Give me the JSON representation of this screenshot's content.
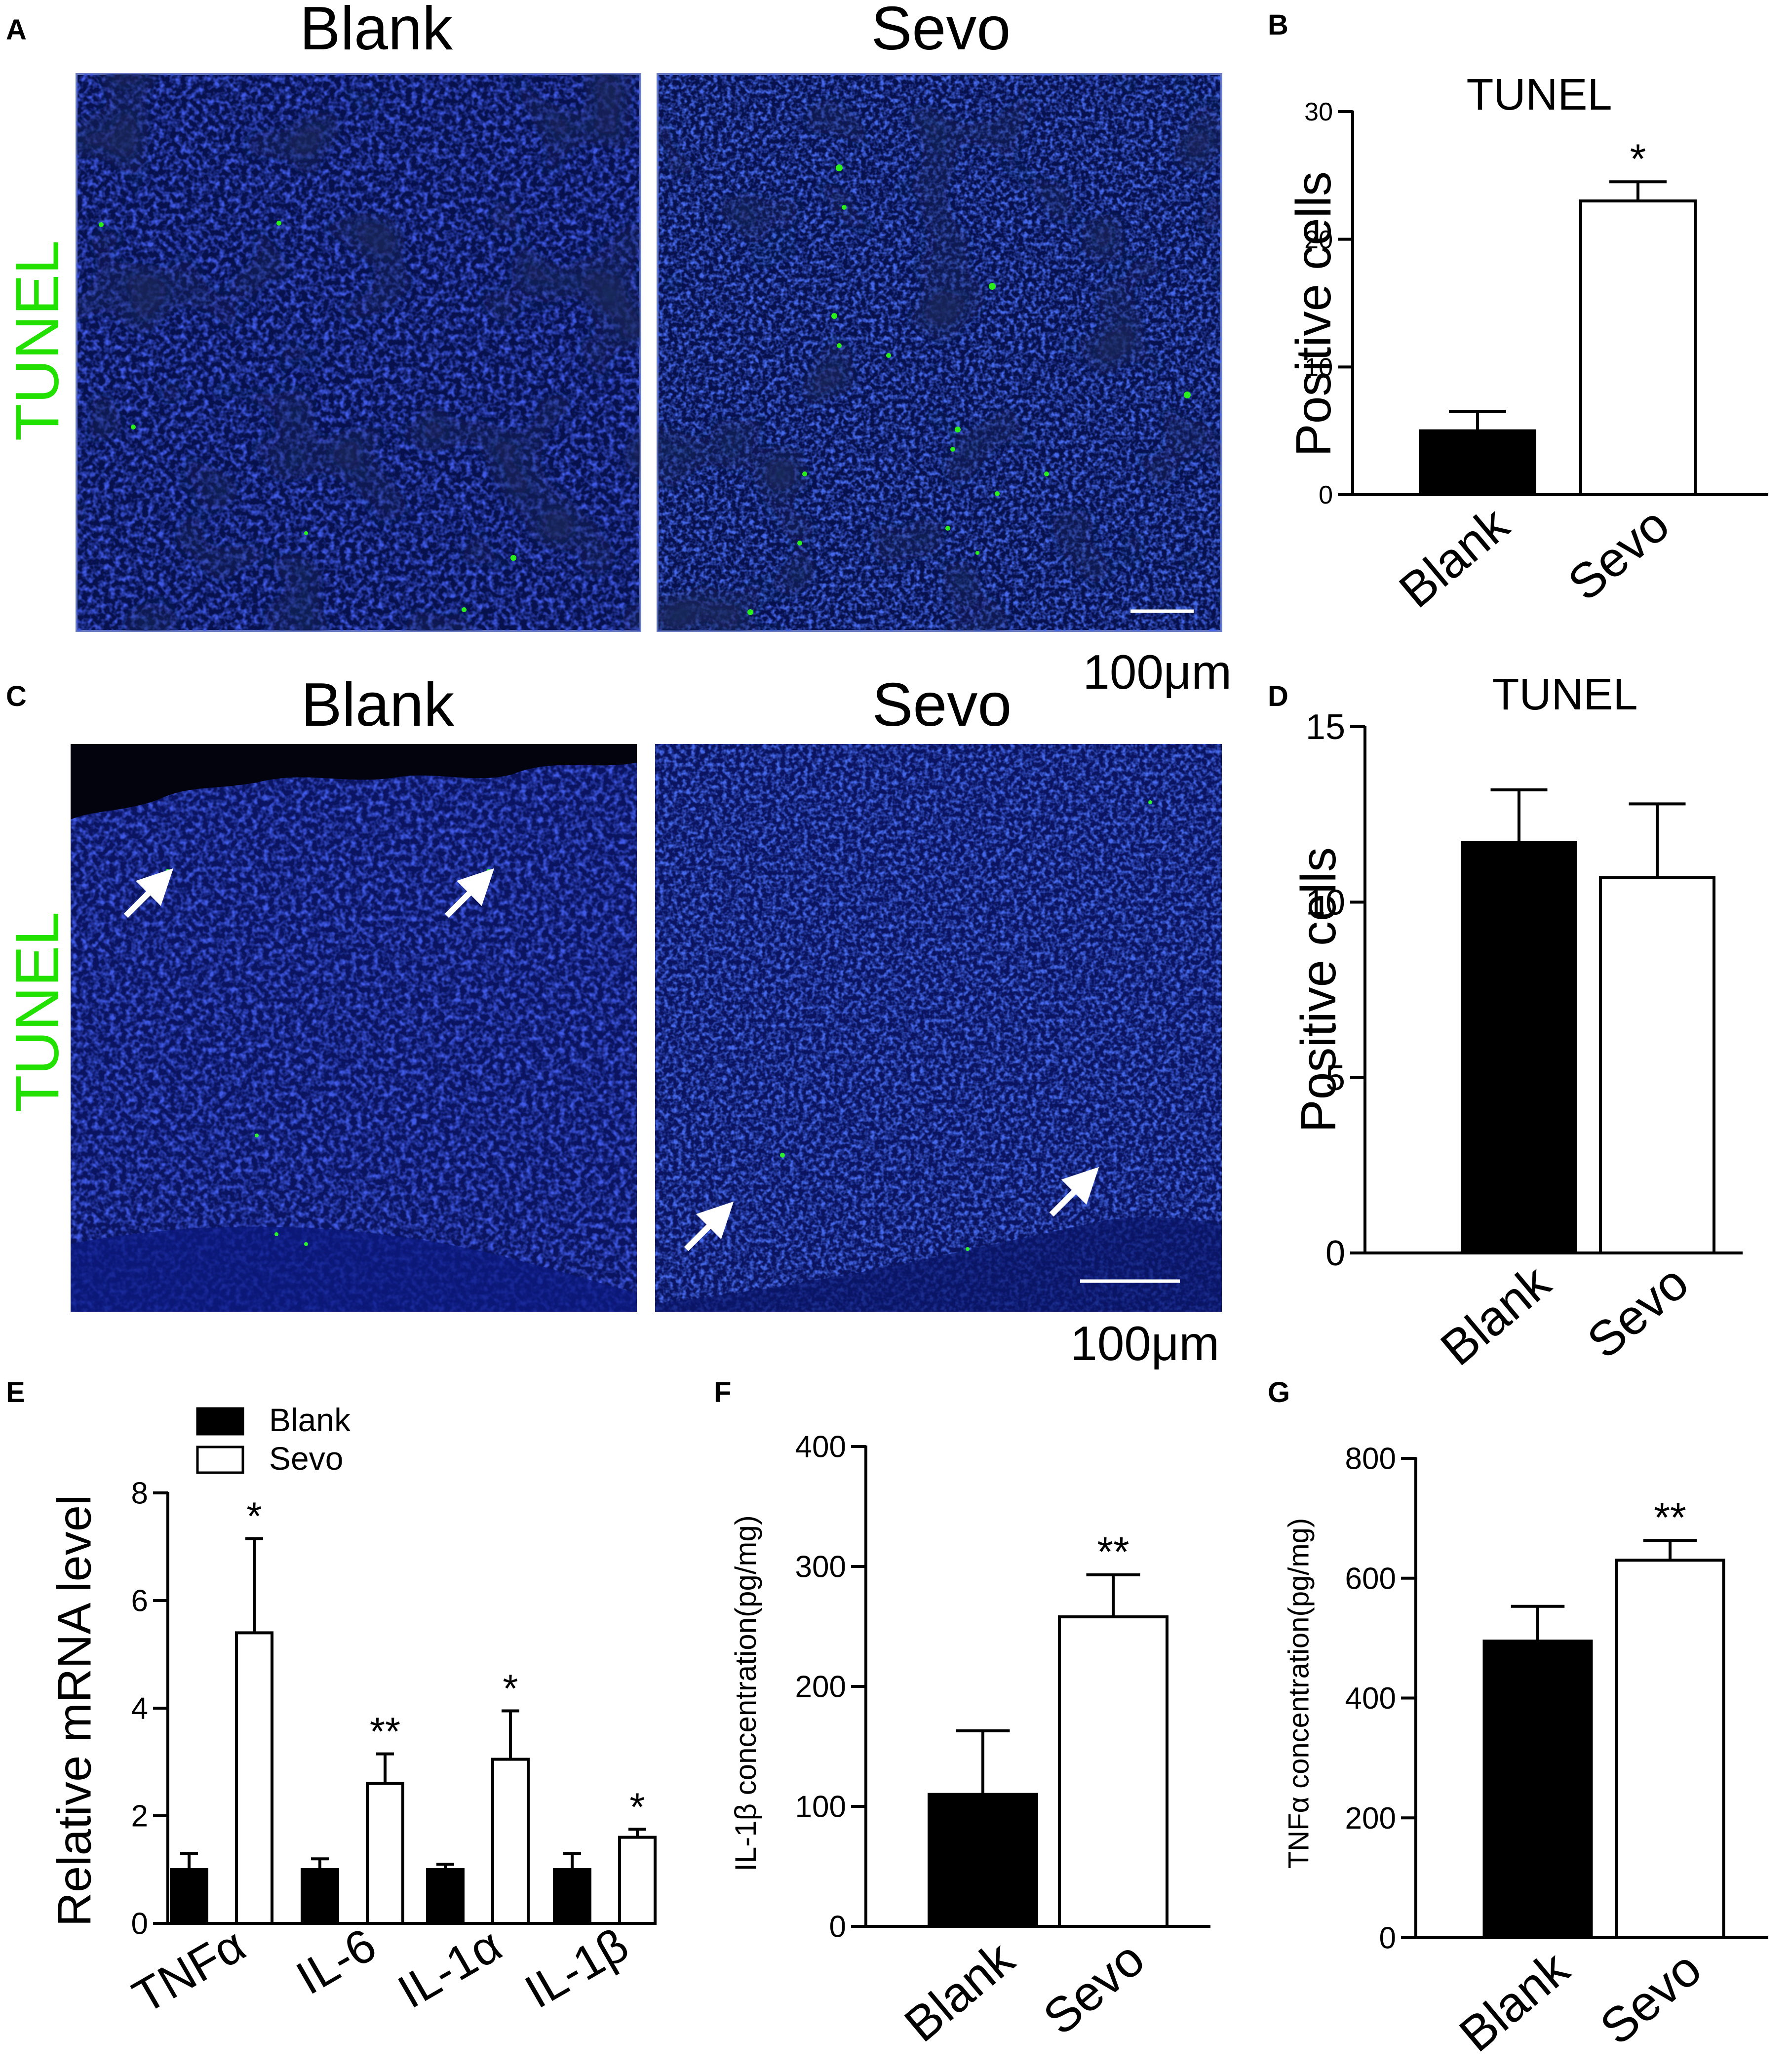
{
  "panels": {
    "A": {
      "letter": "A",
      "row_label": "TUNEL",
      "col_labels": [
        "Blank",
        "Sevo"
      ],
      "scale_label": "100μm"
    },
    "C": {
      "letter": "C",
      "row_label": "TUNEL",
      "col_labels": [
        "Blank",
        "Sevo"
      ],
      "scale_label": "100μm"
    },
    "B": {
      "letter": "B"
    },
    "D": {
      "letter": "D"
    },
    "E": {
      "letter": "E"
    },
    "F": {
      "letter": "F"
    },
    "G": {
      "letter": "G"
    }
  },
  "colors": {
    "tunel_green": "#22e000",
    "nucleus_blue": "#1e2cc8",
    "tissue_dark": "#050a3a",
    "bar_black": "#000000",
    "bar_white": "#ffffff",
    "arrow": "#ffffff"
  },
  "chart_data": [
    {
      "id": "B",
      "type": "bar",
      "title": "TUNEL",
      "ylabel": "Positive cells",
      "xlabel": "",
      "categories": [
        "Blank",
        "Sevo"
      ],
      "values": [
        5,
        23
      ],
      "errors": [
        1.5,
        1.5
      ],
      "significance": [
        "",
        "*"
      ],
      "fills": [
        "black",
        "white"
      ],
      "ylim": [
        0,
        30
      ],
      "yticks": [
        0,
        10,
        20,
        30
      ],
      "grid": false
    },
    {
      "id": "D",
      "type": "bar",
      "title": "TUNEL",
      "ylabel": "Positive cells",
      "xlabel": "",
      "categories": [
        "Blank",
        "Sevo"
      ],
      "values": [
        11.7,
        10.7
      ],
      "errors": [
        1.5,
        2.1
      ],
      "significance": [
        "",
        ""
      ],
      "fills": [
        "black",
        "white"
      ],
      "ylim": [
        0,
        15
      ],
      "yticks": [
        0,
        5,
        10,
        15
      ],
      "grid": false
    },
    {
      "id": "E",
      "type": "bar",
      "title": "",
      "ylabel": "Relative mRNA level",
      "xlabel": "",
      "categories": [
        "TNFα",
        "IL-6",
        "IL-1α",
        "IL-1β"
      ],
      "series": [
        {
          "name": "Blank",
          "values": [
            1.0,
            1.0,
            1.0,
            1.0
          ],
          "errors": [
            0.3,
            0.2,
            0.1,
            0.3
          ],
          "fill": "black"
        },
        {
          "name": "Sevo",
          "values": [
            5.4,
            2.6,
            3.05,
            1.6
          ],
          "errors": [
            1.75,
            0.55,
            0.9,
            0.15
          ],
          "fill": "white"
        }
      ],
      "significance": [
        "*",
        "**",
        "*",
        "*"
      ],
      "ylim": [
        0,
        8
      ],
      "yticks": [
        0,
        2,
        4,
        6,
        8
      ],
      "legend": "top-left",
      "grid": false
    },
    {
      "id": "F",
      "type": "bar",
      "title": "",
      "ylabel": "IL-1β concentration(pg/mg)",
      "xlabel": "",
      "categories": [
        "Blank",
        "Sevo"
      ],
      "values": [
        110,
        258
      ],
      "errors": [
        53,
        35
      ],
      "significance": [
        "",
        "**"
      ],
      "fills": [
        "black",
        "white"
      ],
      "ylim": [
        0,
        400
      ],
      "yticks": [
        0,
        100,
        200,
        300,
        400
      ],
      "grid": false
    },
    {
      "id": "G",
      "type": "bar",
      "title": "",
      "ylabel": "TNFα concentration(pg/mg)",
      "xlabel": "",
      "categories": [
        "Blank",
        "Sevo"
      ],
      "values": [
        495,
        630
      ],
      "errors": [
        58,
        33
      ],
      "significance": [
        "",
        "**"
      ],
      "fills": [
        "black",
        "white"
      ],
      "ylim": [
        0,
        800
      ],
      "yticks": [
        0,
        200,
        400,
        600,
        800
      ],
      "grid": false
    }
  ]
}
